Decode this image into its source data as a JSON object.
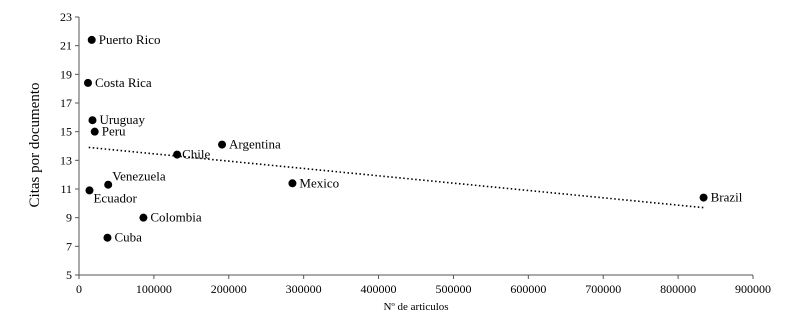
{
  "chart_data": {
    "type": "scatter",
    "xlabel": "Nº de articulos",
    "ylabel": "Citas por documento",
    "xlim": [
      0,
      900000
    ],
    "ylim": [
      5,
      23
    ],
    "xticks": [
      0,
      100000,
      200000,
      300000,
      400000,
      500000,
      600000,
      700000,
      800000,
      900000
    ],
    "yticks": [
      5,
      7,
      9,
      11,
      13,
      15,
      17,
      19,
      21,
      23
    ],
    "grid": false,
    "points": [
      {
        "label": "Puerto Rico",
        "x": 17000,
        "y": 21.4
      },
      {
        "label": "Costa Rica",
        "x": 12000,
        "y": 18.4
      },
      {
        "label": "Uruguay",
        "x": 18000,
        "y": 15.8
      },
      {
        "label": "Peru",
        "x": 21000,
        "y": 15.0
      },
      {
        "label": "Argentina",
        "x": 191000,
        "y": 14.1
      },
      {
        "label": "Chile",
        "x": 131000,
        "y": 13.4
      },
      {
        "label": "Mexico",
        "x": 285000,
        "y": 11.4
      },
      {
        "label": "Venezuela",
        "x": 39000,
        "y": 11.3
      },
      {
        "label": "Ecuador",
        "x": 14000,
        "y": 10.9
      },
      {
        "label": "Brazil",
        "x": 834000,
        "y": 10.4
      },
      {
        "label": "Colombia",
        "x": 86000,
        "y": 9.0
      },
      {
        "label": "Cuba",
        "x": 38000,
        "y": 7.6
      }
    ],
    "trendline": {
      "style": "dotted",
      "x": [
        13000,
        834000
      ],
      "y": [
        13.9,
        9.7
      ]
    }
  }
}
